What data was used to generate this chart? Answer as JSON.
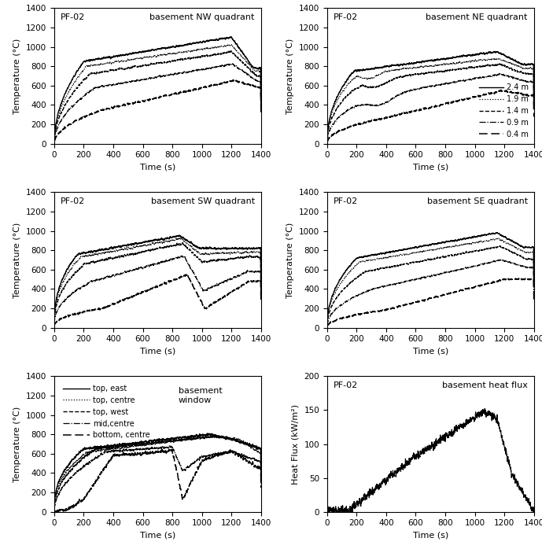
{
  "xlabel": "Time (s)",
  "temp_ylabel": "Temperature (°C)",
  "hf_ylabel": "Heat Flux (kW/m²)",
  "legend_heights": [
    "2.4 m",
    "1.9 m",
    "1.4 m",
    "0.9 m",
    "0.4 m"
  ],
  "legend_window": [
    "top, east",
    "top, centre",
    "top, west",
    "mid,centre",
    "bottom, centre"
  ],
  "subplot_titles": [
    "basement NW quadrant",
    "basement NE quadrant",
    "basement SW quadrant",
    "basement SE quadrant"
  ],
  "window_subtitle": "basement\nwindow",
  "hf_subtitle": "basement heat flux",
  "pf_label": "PF-02",
  "temp_ylim": [
    0,
    1400
  ],
  "temp_yticks": [
    0,
    200,
    400,
    600,
    800,
    1000,
    1200,
    1400
  ],
  "hf_ylim": [
    0,
    200
  ],
  "hf_yticks": [
    0,
    50,
    100,
    150,
    200
  ],
  "xlim": [
    0,
    1400
  ],
  "xticks": [
    0,
    200,
    400,
    600,
    800,
    1000,
    1200,
    1400
  ]
}
